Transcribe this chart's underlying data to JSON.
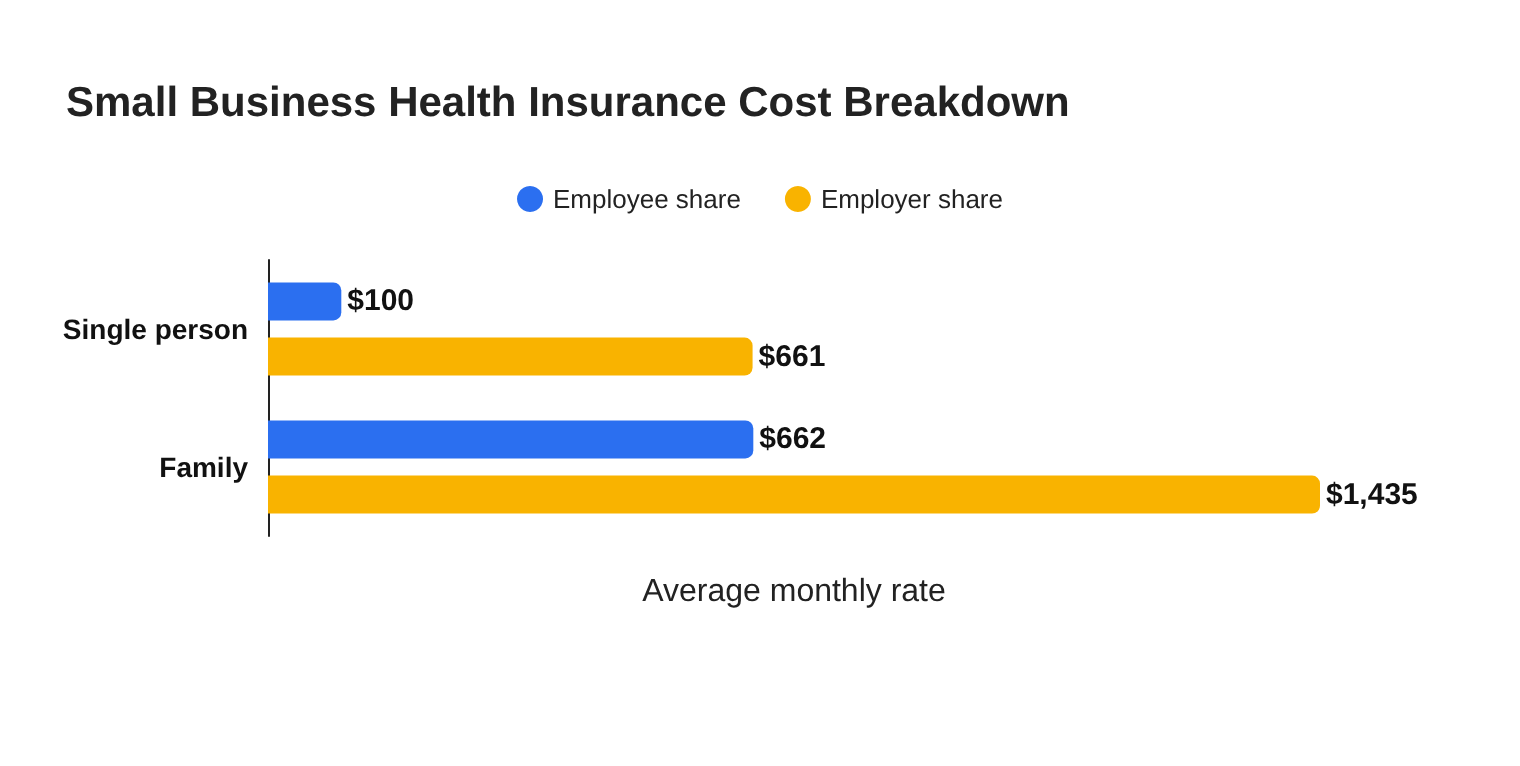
{
  "chart_data": {
    "type": "bar",
    "orientation": "horizontal",
    "title": "Small Business Health Insurance Cost Breakdown",
    "xlabel": "Average monthly rate",
    "categories": [
      "Single person",
      "Family"
    ],
    "series": [
      {
        "name": "Employee share",
        "color": "#2b6ff0",
        "values": [
          100,
          662
        ],
        "value_labels": [
          "$100",
          "$662"
        ]
      },
      {
        "name": "Employer share",
        "color": "#f9b300",
        "values": [
          661,
          1435
        ],
        "value_labels": [
          "$661",
          "$1,435"
        ]
      }
    ],
    "legend": "top",
    "grid": false
  }
}
